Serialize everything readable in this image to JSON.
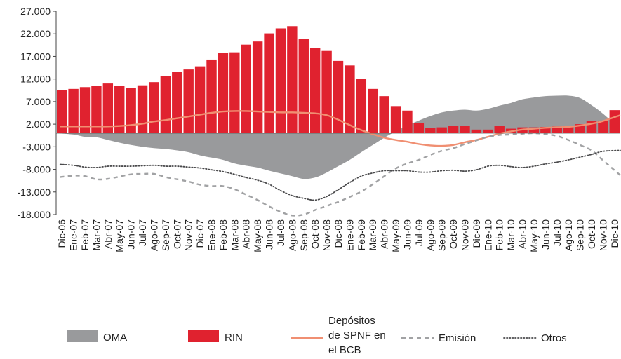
{
  "chart_data": {
    "type": "bar",
    "title": "",
    "xlabel": "",
    "ylabel": "",
    "ylim": [
      -18000,
      27000
    ],
    "yticks": [
      27000,
      22000,
      17000,
      12000,
      7000,
      2000,
      -3000,
      -8000,
      -13000,
      -18000
    ],
    "ytick_labels": [
      "27.000",
      "22.000",
      "17.000",
      "12.000",
      "7.000",
      "2.000",
      "-3.000",
      "-8.000",
      "-13.000",
      "-18.000"
    ],
    "grid": false,
    "legend_position": "bottom",
    "categories": [
      "Dic-06",
      "Ene-07",
      "Feb-07",
      "Mar-07",
      "Abr-07",
      "May-07",
      "Jun-07",
      "Jul-07",
      "Ago-07",
      "Sep-07",
      "Oct-07",
      "Nov-07",
      "Dic-07",
      "Ene-08",
      "Feb-08",
      "Mar-08",
      "Abr-08",
      "May-08",
      "Jun-08",
      "Jul-08",
      "Ago-08",
      "Sep-08",
      "Oct-08",
      "Nov-08",
      "Dic-08",
      "Ene-09",
      "Feb-09",
      "Mar-09",
      "Abr-09",
      "May-09",
      "Jun-09",
      "Jul-09",
      "Ago-09",
      "Sep-09",
      "Oct-09",
      "Nov-09",
      "Dic-09",
      "Ene-10",
      "Feb-10",
      "Mar-10",
      "Abr-10",
      "May-10",
      "Jun-10",
      "Jul-10",
      "Ago-10",
      "Sep-10",
      "Oct-10",
      "Nov-10",
      "Dic-10"
    ],
    "series": [
      {
        "name": "OMA",
        "kind": "area",
        "color": "#999a9c",
        "values": [
          0,
          -300,
          -800,
          -900,
          -1500,
          -2100,
          -2600,
          -3000,
          -3300,
          -3500,
          -3800,
          -4200,
          -4900,
          -5400,
          -5900,
          -6700,
          -7200,
          -7600,
          -8300,
          -8900,
          -9500,
          -10100,
          -9800,
          -8700,
          -7300,
          -5900,
          -4200,
          -2600,
          -1000,
          400,
          1700,
          2800,
          3800,
          4600,
          5000,
          5200,
          5000,
          5400,
          6100,
          6700,
          7500,
          7900,
          8200,
          8300,
          8300,
          7800,
          6200,
          4300,
          900
        ]
      },
      {
        "name": "RIN",
        "kind": "bar",
        "color": "#e0222f",
        "values": [
          9500,
          9800,
          10200,
          10400,
          11000,
          10500,
          10000,
          10600,
          11300,
          12700,
          13500,
          14100,
          14800,
          16300,
          17800,
          17900,
          19600,
          20300,
          22100,
          23200,
          23700,
          20800,
          18800,
          18200,
          16000,
          15000,
          12100,
          9800,
          8200,
          6000,
          5000,
          2300,
          1200,
          1300,
          1700,
          1700,
          800,
          800,
          1700,
          1000,
          1300,
          1300,
          1400,
          1500,
          1700,
          2000,
          2700,
          2800,
          5100
        ]
      },
      {
        "name": "Depósitos de SPNF en el BCB",
        "kind": "line",
        "color": "#f08f72",
        "dash": "",
        "values": [
          1500,
          1500,
          1500,
          1500,
          1500,
          1600,
          1800,
          2100,
          2600,
          2900,
          3300,
          3700,
          4100,
          4500,
          4800,
          4900,
          4900,
          4800,
          4700,
          4600,
          4600,
          4500,
          4400,
          4000,
          3000,
          1800,
          700,
          -200,
          -1000,
          -1500,
          -1900,
          -2400,
          -2700,
          -2800,
          -2600,
          -2000,
          -1500,
          -800,
          -100,
          400,
          800,
          1000,
          1200,
          1300,
          1400,
          1700,
          2100,
          2700,
          4000
        ]
      },
      {
        "name": "Emisión",
        "kind": "line",
        "color": "#a1a2a4",
        "dash": "6,5",
        "values": [
          -9700,
          -9400,
          -9500,
          -10200,
          -10100,
          -9600,
          -9100,
          -9000,
          -9000,
          -9700,
          -10200,
          -10700,
          -11400,
          -11700,
          -11700,
          -12400,
          -13600,
          -14800,
          -16200,
          -17400,
          -18200,
          -18000,
          -17000,
          -16100,
          -15200,
          -14100,
          -12900,
          -11300,
          -9500,
          -7800,
          -6700,
          -5900,
          -4800,
          -3900,
          -3300,
          -2400,
          -1600,
          -800,
          -400,
          -300,
          -100,
          0,
          -200,
          -600,
          -1500,
          -2600,
          -3800,
          -6000,
          -9300
        ]
      },
      {
        "name": "Otros",
        "kind": "line",
        "color": "#4a4a4c",
        "dash": "1.5,2.5",
        "values": [
          -6900,
          -7100,
          -7500,
          -7600,
          -7300,
          -7300,
          -7300,
          -7200,
          -7100,
          -7300,
          -7300,
          -7500,
          -7700,
          -8100,
          -8500,
          -9100,
          -9800,
          -10400,
          -11300,
          -12700,
          -13800,
          -14400,
          -14800,
          -14000,
          -12500,
          -10900,
          -9500,
          -8800,
          -8300,
          -8300,
          -8300,
          -8600,
          -8600,
          -8300,
          -8200,
          -8400,
          -8100,
          -7300,
          -7100,
          -7400,
          -7600,
          -7300,
          -6800,
          -6400,
          -5900,
          -5300,
          -4700,
          -4000,
          -3800
        ]
      }
    ]
  }
}
